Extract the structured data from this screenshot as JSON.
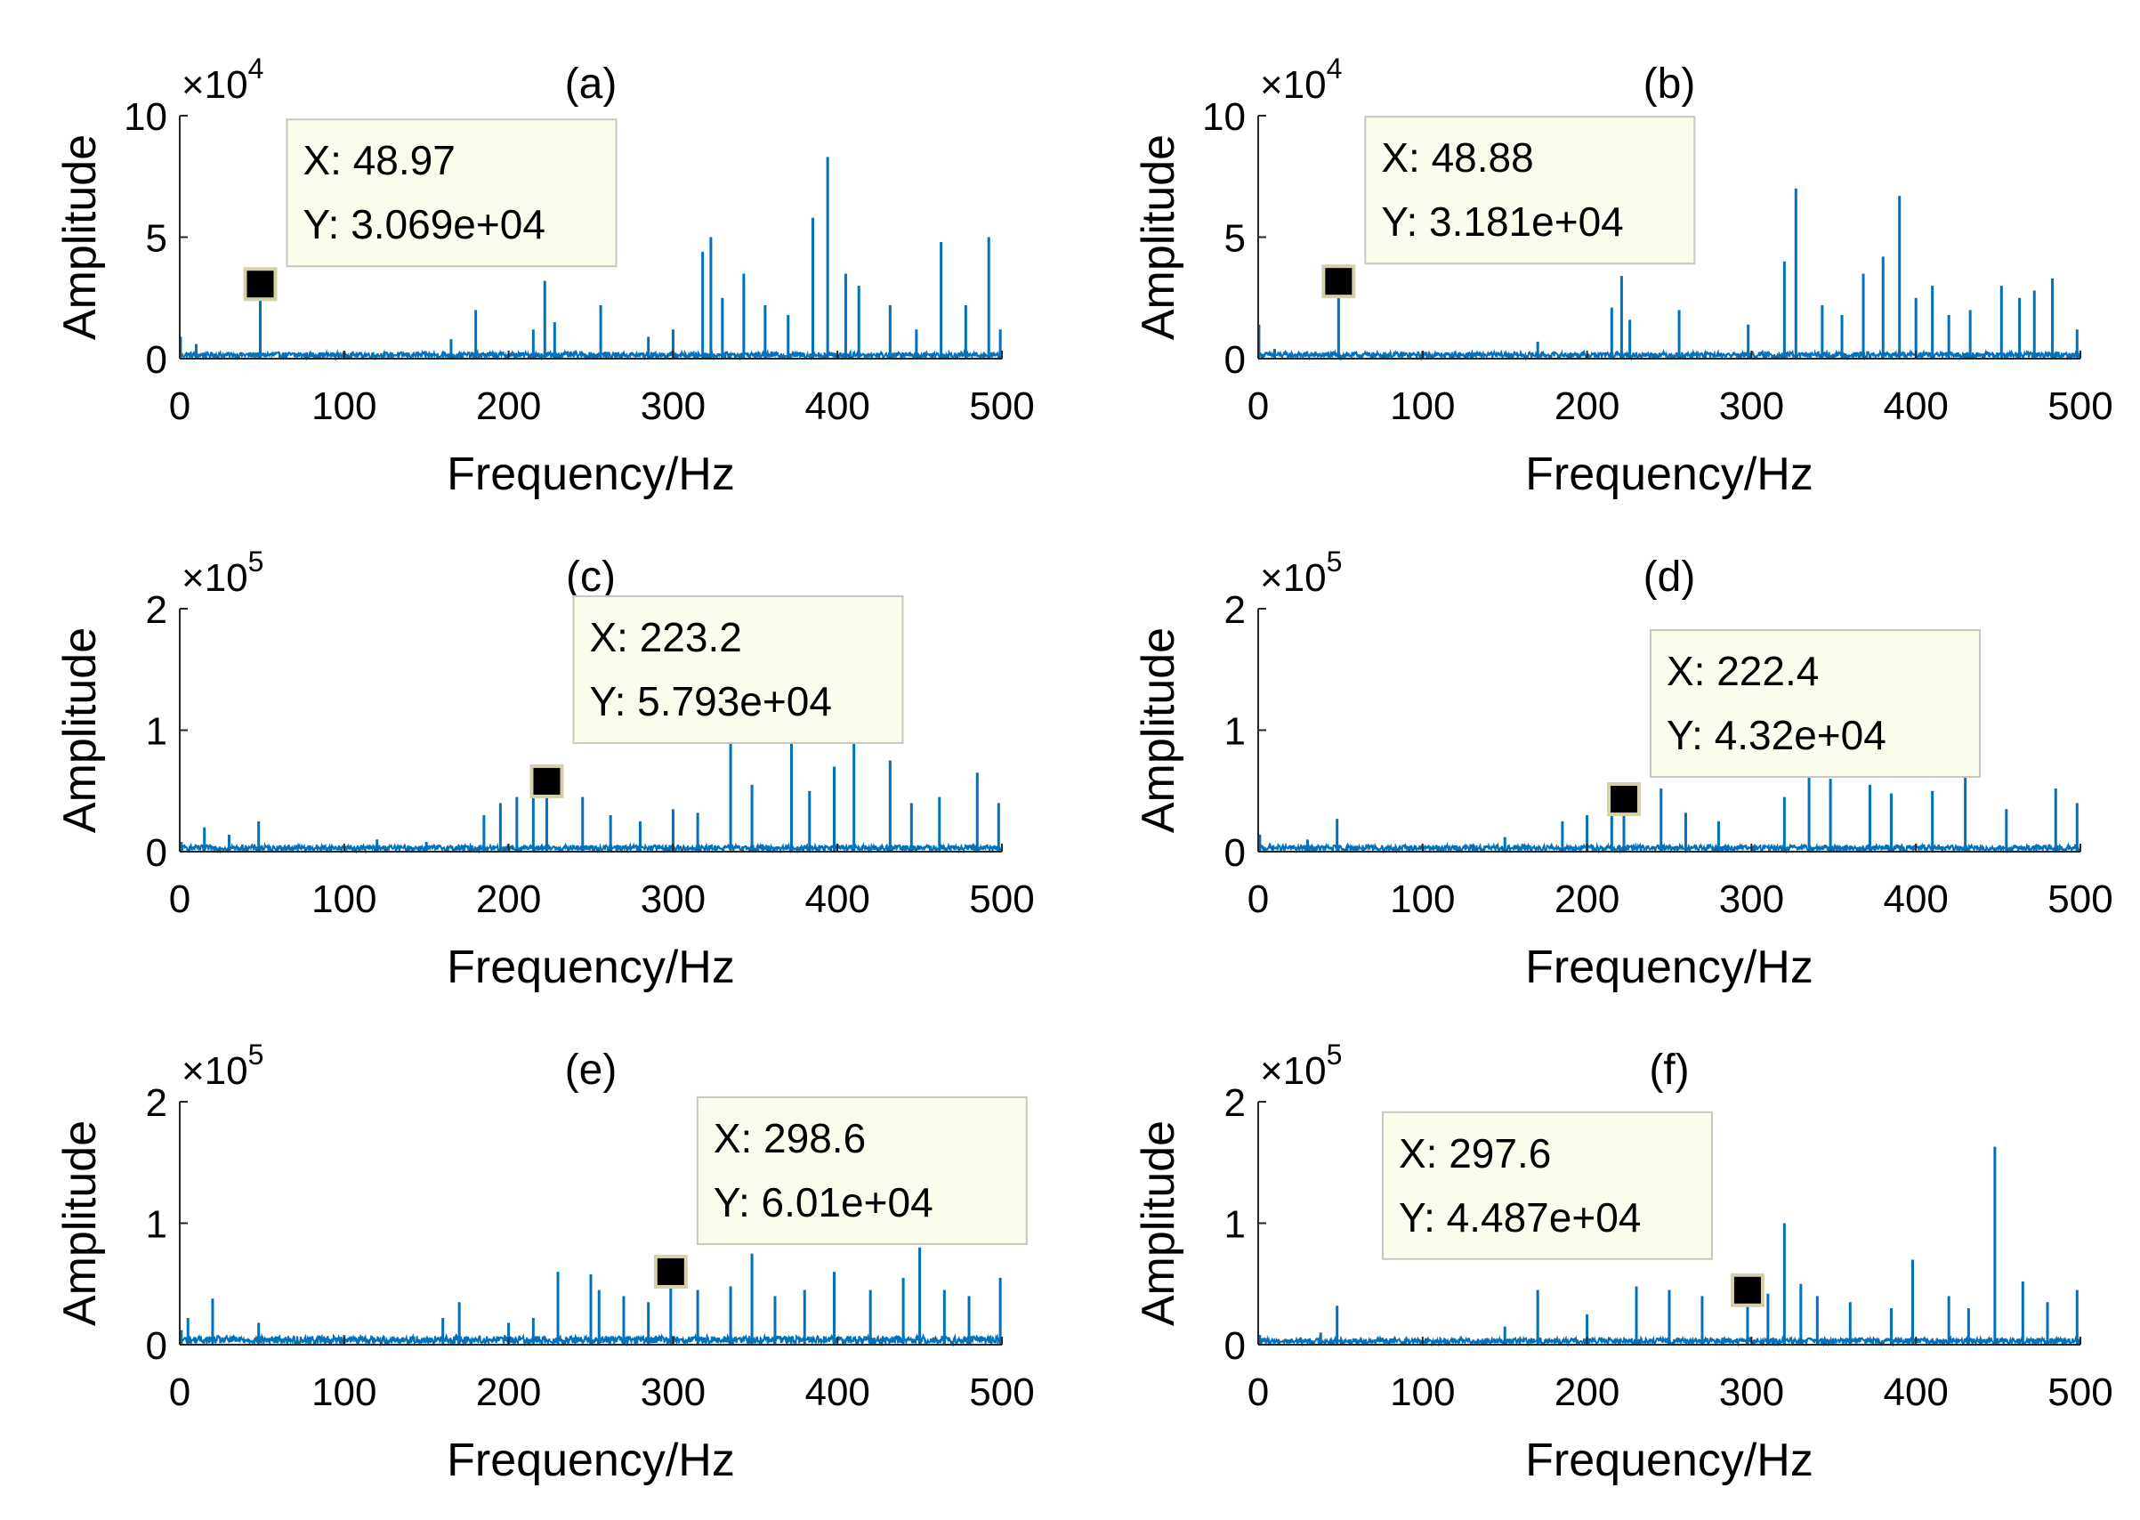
{
  "chart_data": [
    {
      "id": "a",
      "type": "line",
      "title": "(a)",
      "xlabel": "Frequency/Hz",
      "ylabel": "Amplitude",
      "xlim": [
        0,
        500
      ],
      "ylim": [
        0,
        100000
      ],
      "xticks": [
        0,
        100,
        200,
        300,
        400,
        500
      ],
      "xtick_labels": [
        "0",
        "100",
        "200",
        "300",
        "400",
        "500"
      ],
      "yticks": [
        0,
        50000,
        100000
      ],
      "ytick_labels": [
        "0",
        "5",
        "10"
      ],
      "y_exponent_label": "×10",
      "y_exponent_power": "4",
      "series_color": "#0072BD",
      "baseline": 1500,
      "peaks": [
        [
          0.5,
          9000
        ],
        [
          48.97,
          30690
        ],
        [
          10,
          6000
        ],
        [
          100,
          3000
        ],
        [
          165,
          8000
        ],
        [
          180,
          20000
        ],
        [
          215,
          12000
        ],
        [
          222,
          32000
        ],
        [
          228,
          15000
        ],
        [
          256,
          22000
        ],
        [
          285,
          9000
        ],
        [
          300,
          12000
        ],
        [
          318,
          44000
        ],
        [
          323,
          50000
        ],
        [
          330,
          25000
        ],
        [
          343,
          35000
        ],
        [
          356,
          22000
        ],
        [
          370,
          18000
        ],
        [
          385,
          58000
        ],
        [
          394,
          83000
        ],
        [
          405,
          35000
        ],
        [
          413,
          30000
        ],
        [
          432,
          22000
        ],
        [
          448,
          12000
        ],
        [
          463,
          48000
        ],
        [
          478,
          22000
        ],
        [
          492,
          50000
        ],
        [
          499,
          12000
        ]
      ],
      "datatip": {
        "x": 48.97,
        "y": 30690,
        "x_text": "X: 48.97",
        "y_text": "Y: 3.069e+04"
      }
    },
    {
      "id": "b",
      "type": "line",
      "title": "(b)",
      "xlabel": "Frequency/Hz",
      "ylabel": "Amplitude",
      "xlim": [
        0,
        500
      ],
      "ylim": [
        0,
        100000
      ],
      "xticks": [
        0,
        100,
        200,
        300,
        400,
        500
      ],
      "xtick_labels": [
        "0",
        "100",
        "200",
        "300",
        "400",
        "500"
      ],
      "yticks": [
        0,
        50000,
        100000
      ],
      "ytick_labels": [
        "0",
        "5",
        "10"
      ],
      "y_exponent_label": "×10",
      "y_exponent_power": "4",
      "series_color": "#0072BD",
      "baseline": 1500,
      "peaks": [
        [
          0.5,
          14000
        ],
        [
          48.88,
          31810
        ],
        [
          10,
          4000
        ],
        [
          100,
          3000
        ],
        [
          170,
          7000
        ],
        [
          215,
          21000
        ],
        [
          221,
          34000
        ],
        [
          226,
          16000
        ],
        [
          256,
          20000
        ],
        [
          298,
          14000
        ],
        [
          320,
          40000
        ],
        [
          327,
          70000
        ],
        [
          343,
          22000
        ],
        [
          355,
          18000
        ],
        [
          368,
          35000
        ],
        [
          380,
          42000
        ],
        [
          390,
          67000
        ],
        [
          400,
          25000
        ],
        [
          410,
          30000
        ],
        [
          420,
          18000
        ],
        [
          433,
          20000
        ],
        [
          452,
          30000
        ],
        [
          463,
          25000
        ],
        [
          472,
          28000
        ],
        [
          483,
          33000
        ],
        [
          498,
          12000
        ]
      ],
      "datatip": {
        "x": 48.88,
        "y": 31810,
        "x_text": "X: 48.88",
        "y_text": "Y: 3.181e+04"
      }
    },
    {
      "id": "c",
      "type": "line",
      "title": "(c)",
      "xlabel": "Frequency/Hz",
      "ylabel": "Amplitude",
      "xlim": [
        0,
        500
      ],
      "ylim": [
        0,
        200000
      ],
      "xticks": [
        0,
        100,
        200,
        300,
        400,
        500
      ],
      "xtick_labels": [
        "0",
        "100",
        "200",
        "300",
        "400",
        "500"
      ],
      "yticks": [
        0,
        100000,
        200000
      ],
      "ytick_labels": [
        "0",
        "1",
        "2"
      ],
      "y_exponent_label": "×10",
      "y_exponent_power": "5",
      "series_color": "#0072BD",
      "baseline": 3000,
      "peaks": [
        [
          1,
          8000
        ],
        [
          15,
          20000
        ],
        [
          30,
          14000
        ],
        [
          48,
          25000
        ],
        [
          120,
          10000
        ],
        [
          150,
          8000
        ],
        [
          185,
          30000
        ],
        [
          195,
          40000
        ],
        [
          205,
          45000
        ],
        [
          215,
          55000
        ],
        [
          223.2,
          57930
        ],
        [
          245,
          45000
        ],
        [
          262,
          30000
        ],
        [
          280,
          25000
        ],
        [
          300,
          35000
        ],
        [
          315,
          32000
        ],
        [
          335,
          98000
        ],
        [
          348,
          55000
        ],
        [
          372,
          92000
        ],
        [
          383,
          50000
        ],
        [
          398,
          70000
        ],
        [
          410,
          95000
        ],
        [
          432,
          75000
        ],
        [
          445,
          40000
        ],
        [
          462,
          45000
        ],
        [
          485,
          65000
        ],
        [
          498,
          40000
        ]
      ],
      "datatip": {
        "x": 223.2,
        "y": 57930,
        "x_text": "X: 223.2",
        "y_text": "Y: 5.793e+04"
      }
    },
    {
      "id": "d",
      "type": "line",
      "title": "(d)",
      "xlabel": "Frequency/Hz",
      "ylabel": "Amplitude",
      "xlim": [
        0,
        500
      ],
      "ylim": [
        0,
        200000
      ],
      "xticks": [
        0,
        100,
        200,
        300,
        400,
        500
      ],
      "xtick_labels": [
        "0",
        "100",
        "200",
        "300",
        "400",
        "500"
      ],
      "yticks": [
        0,
        100000,
        200000
      ],
      "ytick_labels": [
        "0",
        "1",
        "2"
      ],
      "y_exponent_label": "×10",
      "y_exponent_power": "5",
      "series_color": "#0072BD",
      "baseline": 3000,
      "peaks": [
        [
          1,
          14000
        ],
        [
          30,
          10000
        ],
        [
          48,
          27000
        ],
        [
          150,
          12000
        ],
        [
          185,
          25000
        ],
        [
          200,
          30000
        ],
        [
          215,
          35000
        ],
        [
          222.4,
          43200
        ],
        [
          245,
          52000
        ],
        [
          260,
          32000
        ],
        [
          280,
          25000
        ],
        [
          320,
          45000
        ],
        [
          335,
          85000
        ],
        [
          348,
          60000
        ],
        [
          372,
          55000
        ],
        [
          385,
          48000
        ],
        [
          410,
          50000
        ],
        [
          430,
          72000
        ],
        [
          455,
          35000
        ],
        [
          485,
          52000
        ],
        [
          498,
          40000
        ]
      ],
      "datatip": {
        "x": 222.4,
        "y": 43200,
        "x_text": "X: 222.4",
        "y_text": "Y: 4.32e+04"
      }
    },
    {
      "id": "e",
      "type": "line",
      "title": "(e)",
      "xlabel": "Frequency/Hz",
      "ylabel": "Amplitude",
      "xlim": [
        0,
        500
      ],
      "ylim": [
        0,
        200000
      ],
      "xticks": [
        0,
        100,
        200,
        300,
        400,
        500
      ],
      "xtick_labels": [
        "0",
        "100",
        "200",
        "300",
        "400",
        "500"
      ],
      "yticks": [
        0,
        100000,
        200000
      ],
      "ytick_labels": [
        "0",
        "1",
        "2"
      ],
      "y_exponent_label": "×10",
      "y_exponent_power": "5",
      "series_color": "#0072BD",
      "baseline": 4000,
      "peaks": [
        [
          1,
          12000
        ],
        [
          5,
          22000
        ],
        [
          20,
          38000
        ],
        [
          48,
          18000
        ],
        [
          100,
          8000
        ],
        [
          160,
          22000
        ],
        [
          170,
          35000
        ],
        [
          200,
          18000
        ],
        [
          215,
          22000
        ],
        [
          230,
          60000
        ],
        [
          250,
          58000
        ],
        [
          255,
          45000
        ],
        [
          270,
          40000
        ],
        [
          285,
          35000
        ],
        [
          298.6,
          60100
        ],
        [
          315,
          45000
        ],
        [
          335,
          48000
        ],
        [
          348,
          75000
        ],
        [
          362,
          40000
        ],
        [
          380,
          45000
        ],
        [
          398,
          60000
        ],
        [
          420,
          45000
        ],
        [
          440,
          55000
        ],
        [
          450,
          80000
        ],
        [
          465,
          45000
        ],
        [
          480,
          40000
        ],
        [
          499,
          55000
        ]
      ],
      "datatip": {
        "x": 298.6,
        "y": 60100,
        "x_text": "X: 298.6",
        "y_text": "Y: 6.01e+04"
      }
    },
    {
      "id": "f",
      "type": "line",
      "title": "(f)",
      "xlabel": "Frequency/Hz",
      "ylabel": "Amplitude",
      "xlim": [
        0,
        500
      ],
      "ylim": [
        0,
        200000
      ],
      "xticks": [
        0,
        100,
        200,
        300,
        400,
        500
      ],
      "xtick_labels": [
        "0",
        "100",
        "200",
        "300",
        "400",
        "500"
      ],
      "yticks": [
        0,
        100000,
        200000
      ],
      "ytick_labels": [
        "0",
        "1",
        "2"
      ],
      "y_exponent_label": "×10",
      "y_exponent_power": "5",
      "series_color": "#0072BD",
      "baseline": 3000,
      "peaks": [
        [
          1,
          8000
        ],
        [
          38,
          10000
        ],
        [
          48,
          32000
        ],
        [
          150,
          15000
        ],
        [
          170,
          45000
        ],
        [
          200,
          25000
        ],
        [
          230,
          48000
        ],
        [
          250,
          45000
        ],
        [
          270,
          40000
        ],
        [
          297.6,
          44870
        ],
        [
          310,
          42000
        ],
        [
          320,
          100000
        ],
        [
          330,
          50000
        ],
        [
          340,
          40000
        ],
        [
          360,
          35000
        ],
        [
          385,
          30000
        ],
        [
          398,
          70000
        ],
        [
          420,
          40000
        ],
        [
          432,
          30000
        ],
        [
          448,
          163000
        ],
        [
          465,
          52000
        ],
        [
          480,
          35000
        ],
        [
          498,
          45000
        ]
      ],
      "datatip": {
        "x": 297.6,
        "y": 44870,
        "x_text": "X: 297.6",
        "y_text": "Y: 4.487e+04"
      }
    }
  ]
}
